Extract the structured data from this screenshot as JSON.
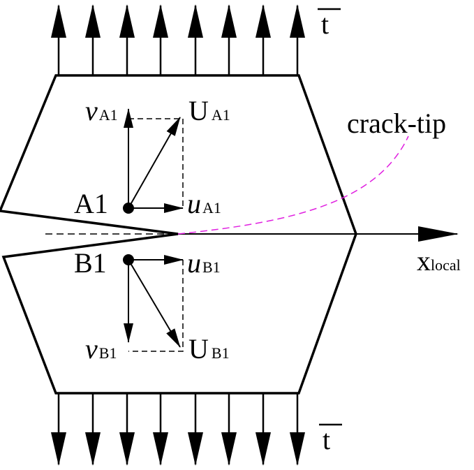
{
  "traction_top": "t",
  "traction_bottom": "t",
  "crack_tip": "crack-tip",
  "axis": {
    "symbol": "x",
    "subscript": "local"
  },
  "point_a": {
    "label": "A1",
    "v": {
      "symbol": "v",
      "subscript": "A1"
    },
    "u": {
      "symbol": "u",
      "subscript": "A1"
    },
    "U": {
      "symbol": "U",
      "subscript": "A1"
    }
  },
  "point_b": {
    "label": "B1",
    "v": {
      "symbol": "v",
      "subscript": "B1"
    },
    "u": {
      "symbol": "u",
      "subscript": "B1"
    },
    "U": {
      "symbol": "U",
      "subscript": "B1"
    }
  }
}
